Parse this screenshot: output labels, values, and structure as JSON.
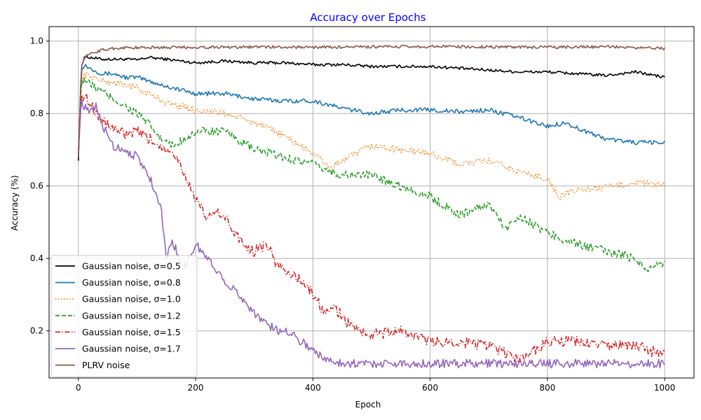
{
  "chart_data": {
    "type": "line",
    "title": "Accuracy over Epochs",
    "title_color": "#0000ff",
    "xlabel": "Epoch",
    "ylabel": "Accuracy (%)",
    "xlim": [
      -50,
      1050
    ],
    "ylim": [
      0.07,
      1.04
    ],
    "xticks": [
      0,
      200,
      400,
      600,
      800,
      1000
    ],
    "xtick_labels": [
      "0",
      "200",
      "400",
      "600",
      "800",
      "1000"
    ],
    "yticks": [
      0.2,
      0.4,
      0.6,
      0.8,
      1.0
    ],
    "ytick_labels": [
      "0.2",
      "0.4",
      "0.6",
      "0.8",
      "1.0"
    ],
    "grid": true,
    "legend_position": "lower-left",
    "series": [
      {
        "name": "Gaussian noise, σ=0.5",
        "color": "#000000",
        "dash": "solid",
        "x": [
          0,
          5,
          10,
          20,
          40,
          60,
          80,
          100,
          120,
          150,
          200,
          250,
          300,
          350,
          400,
          450,
          500,
          550,
          600,
          650,
          700,
          750,
          800,
          850,
          900,
          950,
          1000
        ],
        "y": [
          0.67,
          0.93,
          0.955,
          0.955,
          0.95,
          0.95,
          0.95,
          0.948,
          0.955,
          0.95,
          0.94,
          0.945,
          0.94,
          0.94,
          0.935,
          0.935,
          0.93,
          0.93,
          0.93,
          0.925,
          0.92,
          0.915,
          0.915,
          0.91,
          0.905,
          0.915,
          0.9
        ]
      },
      {
        "name": "Gaussian noise, σ=0.8",
        "color": "#1f77b4",
        "dash": "solid",
        "x": [
          0,
          5,
          10,
          20,
          40,
          60,
          80,
          100,
          120,
          150,
          200,
          250,
          300,
          350,
          400,
          450,
          500,
          550,
          600,
          650,
          700,
          750,
          800,
          830,
          850,
          900,
          950,
          1000
        ],
        "y": [
          0.68,
          0.92,
          0.935,
          0.925,
          0.91,
          0.91,
          0.9,
          0.9,
          0.89,
          0.875,
          0.855,
          0.855,
          0.84,
          0.835,
          0.835,
          0.815,
          0.8,
          0.81,
          0.81,
          0.805,
          0.81,
          0.79,
          0.765,
          0.775,
          0.76,
          0.73,
          0.72,
          0.72
        ]
      },
      {
        "name": "Gaussian noise, σ=1.0",
        "color": "#ff7f0e",
        "dash": "dotted",
        "x": [
          0,
          5,
          10,
          20,
          40,
          60,
          80,
          100,
          150,
          200,
          250,
          300,
          350,
          400,
          430,
          450,
          500,
          550,
          600,
          650,
          700,
          750,
          800,
          820,
          850,
          900,
          950,
          1000
        ],
        "y": [
          0.68,
          0.9,
          0.905,
          0.905,
          0.89,
          0.885,
          0.88,
          0.87,
          0.83,
          0.81,
          0.8,
          0.775,
          0.74,
          0.69,
          0.65,
          0.67,
          0.71,
          0.7,
          0.69,
          0.66,
          0.67,
          0.64,
          0.62,
          0.57,
          0.59,
          0.595,
          0.61,
          0.6
        ]
      },
      {
        "name": "Gaussian noise, σ=1.2",
        "color": "#2ca02c",
        "dash": "dashed",
        "x": [
          0,
          5,
          10,
          20,
          40,
          60,
          80,
          100,
          120,
          140,
          160,
          180,
          200,
          250,
          300,
          350,
          400,
          430,
          450,
          500,
          550,
          600,
          630,
          650,
          700,
          730,
          750,
          800,
          850,
          900,
          950,
          970,
          1000
        ],
        "y": [
          0.68,
          0.89,
          0.895,
          0.88,
          0.86,
          0.84,
          0.82,
          0.8,
          0.77,
          0.73,
          0.71,
          0.73,
          0.75,
          0.75,
          0.7,
          0.68,
          0.66,
          0.64,
          0.63,
          0.63,
          0.6,
          0.57,
          0.54,
          0.52,
          0.55,
          0.48,
          0.52,
          0.47,
          0.44,
          0.42,
          0.4,
          0.37,
          0.39
        ]
      },
      {
        "name": "Gaussian noise, σ=1.5",
        "color": "#d62728",
        "dash": "dashdot",
        "x": [
          0,
          5,
          10,
          20,
          40,
          60,
          80,
          100,
          120,
          140,
          160,
          180,
          200,
          220,
          240,
          260,
          280,
          300,
          320,
          340,
          360,
          380,
          400,
          420,
          440,
          460,
          480,
          500,
          550,
          600,
          650,
          700,
          750,
          780,
          800,
          850,
          900,
          950,
          1000
        ],
        "y": [
          0.68,
          0.85,
          0.85,
          0.83,
          0.78,
          0.76,
          0.74,
          0.75,
          0.73,
          0.71,
          0.7,
          0.64,
          0.56,
          0.51,
          0.53,
          0.49,
          0.44,
          0.42,
          0.44,
          0.38,
          0.36,
          0.34,
          0.3,
          0.25,
          0.26,
          0.22,
          0.2,
          0.19,
          0.2,
          0.17,
          0.17,
          0.16,
          0.12,
          0.15,
          0.17,
          0.17,
          0.16,
          0.16,
          0.13
        ]
      },
      {
        "name": "Gaussian noise, σ=1.7",
        "color": "#9467bd",
        "dash": "solid",
        "x": [
          0,
          5,
          10,
          20,
          30,
          40,
          60,
          80,
          100,
          120,
          140,
          150,
          160,
          170,
          180,
          200,
          220,
          240,
          260,
          280,
          300,
          320,
          340,
          360,
          380,
          400,
          420,
          440,
          460,
          500,
          600,
          700,
          800,
          900,
          1000
        ],
        "y": [
          0.7,
          0.84,
          0.82,
          0.8,
          0.82,
          0.77,
          0.71,
          0.7,
          0.68,
          0.63,
          0.55,
          0.4,
          0.45,
          0.41,
          0.37,
          0.44,
          0.4,
          0.36,
          0.32,
          0.29,
          0.25,
          0.22,
          0.2,
          0.2,
          0.17,
          0.15,
          0.12,
          0.115,
          0.11,
          0.11,
          0.11,
          0.11,
          0.11,
          0.11,
          0.11
        ]
      },
      {
        "name": "PLRV noise",
        "color": "#8c564b",
        "dash": "solid",
        "x": [
          0,
          5,
          10,
          20,
          40,
          60,
          80,
          100,
          200,
          300,
          400,
          500,
          600,
          700,
          800,
          900,
          1000
        ],
        "y": [
          0.68,
          0.93,
          0.955,
          0.965,
          0.975,
          0.98,
          0.982,
          0.982,
          0.983,
          0.984,
          0.983,
          0.984,
          0.985,
          0.984,
          0.983,
          0.984,
          0.98
        ]
      }
    ]
  }
}
